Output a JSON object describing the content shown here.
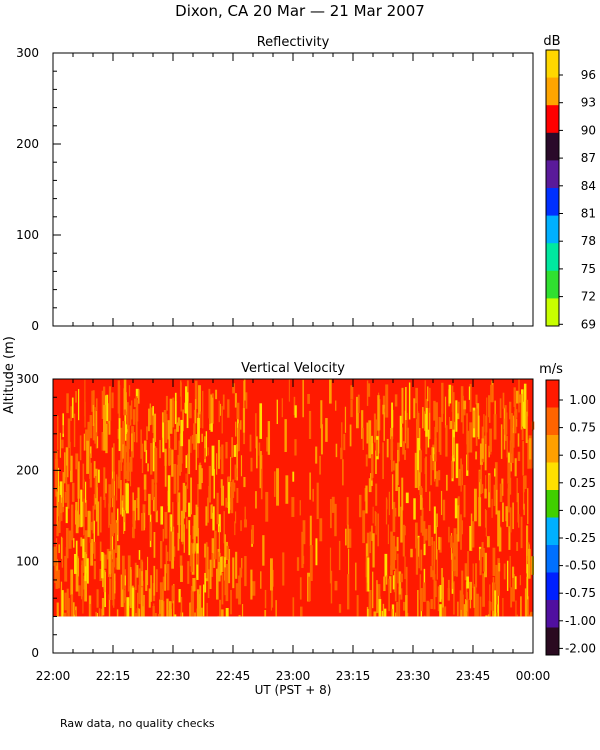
{
  "figure": {
    "title": "Dixon, CA 20 Mar — 21 Mar 2007",
    "shared_ylabel": "Altitude (m)",
    "xlabel": "UT  (PST + 8)",
    "footnote": "Raw data, no quality checks",
    "xtick_labels": [
      "22:00",
      "22:15",
      "22:30",
      "22:45",
      "23:00",
      "23:15",
      "23:30",
      "23:45",
      "00:00"
    ]
  },
  "chart_data": [
    {
      "type": "heatmap",
      "title": "Reflectivity",
      "colorbar_unit": "dB",
      "ylim": [
        0,
        300
      ],
      "yticks": [
        0,
        100,
        200,
        300
      ],
      "y_minor_step": 20,
      "x_minor_step": 5,
      "xlim": [
        "22:00",
        "00:00"
      ],
      "colorbar_ticks": [
        "96",
        "93",
        "90",
        "87",
        "84",
        "81",
        "78",
        "75",
        "72",
        "69"
      ],
      "colorbar_colors": [
        "#ffd700",
        "#ffa500",
        "#ff0000",
        "#2a0a2a",
        "#5a1a9a",
        "#0030ff",
        "#00b0ff",
        "#00e8a0",
        "#30e030",
        "#c8ff00"
      ],
      "values": []
    },
    {
      "type": "heatmap",
      "title": "Vertical Velocity",
      "colorbar_unit": "m/s",
      "ylim": [
        0,
        300
      ],
      "yticks": [
        0,
        100,
        200,
        300
      ],
      "y_minor_step": 20,
      "x_minor_step": 5,
      "xlim": [
        "22:00",
        "00:00"
      ],
      "data_altitude_range": [
        40,
        300
      ],
      "colorbar_ticks": [
        "1.00",
        "0.75",
        "0.50",
        "0.25",
        "0.00",
        "-0.25",
        "-0.50",
        "-0.75",
        "-1.00",
        "-2.00"
      ],
      "colorbar_colors": [
        "#ff1a00",
        "#ff6400",
        "#ffa000",
        "#ffe000",
        "#40d000",
        "#00b0ff",
        "#0070ff",
        "#0020ff",
        "#5010a0",
        "#2a0a20"
      ],
      "dominant_values": "0.75 to 1.00 m/s (mostly red, orange, yellow)"
    }
  ]
}
